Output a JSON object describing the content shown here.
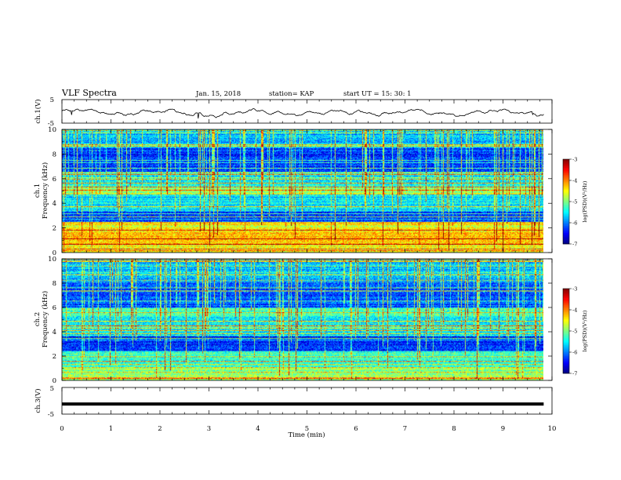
{
  "header": {
    "title": "VLF Spectra",
    "date": "Jan. 15, 2018",
    "station": "station= KAP",
    "start": "start  UT =   15: 30: 1"
  },
  "chart_data": [
    {
      "type": "line",
      "panel": "ch1-waveform",
      "ylabel": "ch.1(V)",
      "ylim": [
        -5,
        5
      ],
      "yticks": [
        "5",
        "-5"
      ],
      "x_range_min": [
        0,
        9.83
      ],
      "y_mean": -0.5,
      "y_amplitude": 1.3,
      "color": "#000000"
    },
    {
      "type": "heatmap",
      "panel": "ch1-spectrogram",
      "ylabel": "ch.1\nFrequency (kHz)",
      "ylabel_line1": "ch.1",
      "ylabel_line2": "Frequency (kHz)",
      "ylim": [
        0,
        10
      ],
      "yticks": [
        "0",
        "2",
        "4",
        "6",
        "8",
        "10"
      ],
      "x_range_min": [
        0,
        9.83
      ],
      "bands_khz": [
        {
          "f0": 0.0,
          "f1": 0.7,
          "level": -4.6
        },
        {
          "f0": 0.7,
          "f1": 1.6,
          "level": -4.2
        },
        {
          "f0": 1.6,
          "f1": 2.5,
          "level": -4.5
        },
        {
          "f0": 2.5,
          "f1": 3.3,
          "level": -6.3
        },
        {
          "f0": 3.3,
          "f1": 4.8,
          "level": -5.6
        },
        {
          "f0": 4.8,
          "f1": 5.3,
          "level": -4.9
        },
        {
          "f0": 5.3,
          "f1": 6.5,
          "level": -5.5
        },
        {
          "f0": 6.5,
          "f1": 8.5,
          "level": -6.3
        },
        {
          "f0": 8.5,
          "f1": 10.0,
          "level": -5.8
        }
      ],
      "colorbar": {
        "label": "log(PSD)(V²/Hz)",
        "min": -7,
        "max": -3,
        "ticks": [
          "-3",
          "-4",
          "-5",
          "-6",
          "-7"
        ]
      }
    },
    {
      "type": "heatmap",
      "panel": "ch2-spectrogram",
      "ylabel_line1": "ch.2",
      "ylabel_line2": "Frequency (kHz)",
      "ylim": [
        0,
        10
      ],
      "yticks": [
        "0",
        "2",
        "4",
        "6",
        "8",
        "10"
      ],
      "x_range_min": [
        0,
        9.83
      ],
      "bands_khz": [
        {
          "f0": 0.0,
          "f1": 1.0,
          "level": -5.0
        },
        {
          "f0": 1.0,
          "f1": 2.4,
          "level": -5.3
        },
        {
          "f0": 2.4,
          "f1": 3.6,
          "level": -6.4
        },
        {
          "f0": 3.6,
          "f1": 5.3,
          "level": -5.5
        },
        {
          "f0": 5.3,
          "f1": 6.0,
          "level": -5.2
        },
        {
          "f0": 6.0,
          "f1": 8.3,
          "level": -6.2
        },
        {
          "f0": 8.3,
          "f1": 10.0,
          "level": -5.8
        }
      ],
      "colorbar": {
        "label": "log(PSD)(V²/Hz)",
        "min": -7,
        "max": -3,
        "ticks": [
          "-3",
          "-4",
          "-5",
          "-6",
          "-7"
        ]
      }
    },
    {
      "type": "line",
      "panel": "ch3-waveform",
      "ylabel": "ch.3(V)",
      "ylim": [
        -5,
        5
      ],
      "yticks": [
        "5",
        "-5"
      ],
      "x_range_min": [
        0,
        9.83
      ],
      "y_value": -1.2,
      "color": "#000000"
    }
  ],
  "xaxis": {
    "label": "Time (min)",
    "xlim": [
      0,
      10
    ],
    "ticks": [
      "0",
      "1",
      "2",
      "3",
      "4",
      "5",
      "6",
      "7",
      "8",
      "9",
      "10"
    ]
  }
}
